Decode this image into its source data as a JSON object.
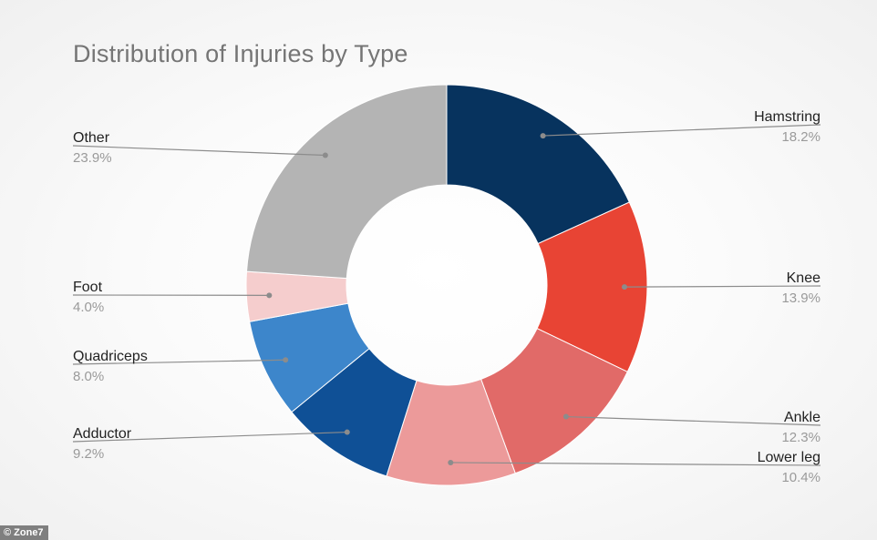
{
  "chart_data": {
    "type": "pie",
    "style": "donut",
    "title": "Distribution of Injuries by Type",
    "slices": [
      {
        "label": "Hamstring",
        "value": 18.2,
        "text": "18.2%",
        "color": "#07335e",
        "side": "right"
      },
      {
        "label": "Knee",
        "value": 13.9,
        "text": "13.9%",
        "color": "#e84434",
        "side": "right"
      },
      {
        "label": "Ankle",
        "value": 12.3,
        "text": "12.3%",
        "color": "#e16a68",
        "side": "right"
      },
      {
        "label": "Lower leg",
        "value": 10.4,
        "text": "10.4%",
        "color": "#ec9a9a",
        "side": "right"
      },
      {
        "label": "Adductor",
        "value": 9.2,
        "text": "9.2%",
        "color": "#0f5096",
        "side": "left"
      },
      {
        "label": "Quadriceps",
        "value": 8.0,
        "text": "8.0%",
        "color": "#3d86cb",
        "side": "left"
      },
      {
        "label": "Foot",
        "value": 4.0,
        "text": "4.0%",
        "color": "#f5cdcd",
        "side": "left"
      },
      {
        "label": "Other",
        "value": 23.9,
        "text": "23.9%",
        "color": "#b4b4b4",
        "side": "left"
      }
    ],
    "legend": "none"
  },
  "credit": "© Zone7"
}
